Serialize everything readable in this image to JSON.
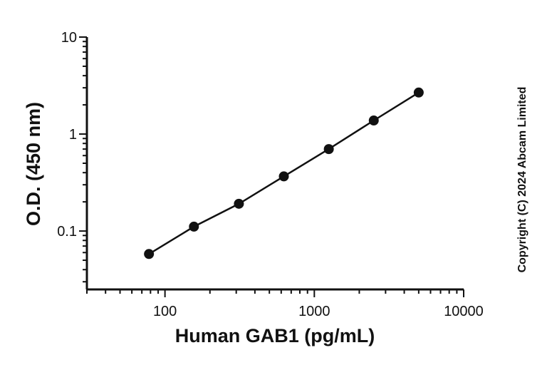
{
  "chart_data": {
    "type": "line",
    "x_scale": "log",
    "y_scale": "log",
    "xlabel": "Human GAB1 (pg/mL)",
    "ylabel": "O.D. (450 nm)",
    "xlim": [
      30,
      10000
    ],
    "ylim": [
      0.025,
      10
    ],
    "x_ticks": [
      100,
      1000,
      10000
    ],
    "x_tick_labels": [
      "100",
      "1000",
      "10000"
    ],
    "y_ticks": [
      0.1,
      1,
      10
    ],
    "y_tick_labels": [
      "0.1",
      "1",
      "10"
    ],
    "grid": false,
    "legend": "none",
    "series": [
      {
        "x": [
          78.125,
          156.25,
          312.5,
          625,
          1250,
          2500,
          5000
        ],
        "y": [
          0.058,
          0.111,
          0.191,
          0.366,
          0.7,
          1.38,
          2.68
        ],
        "color": "#111111",
        "marker": "circle"
      }
    ],
    "annotation": "Copyright (C) 2024 Abcam Limited"
  }
}
